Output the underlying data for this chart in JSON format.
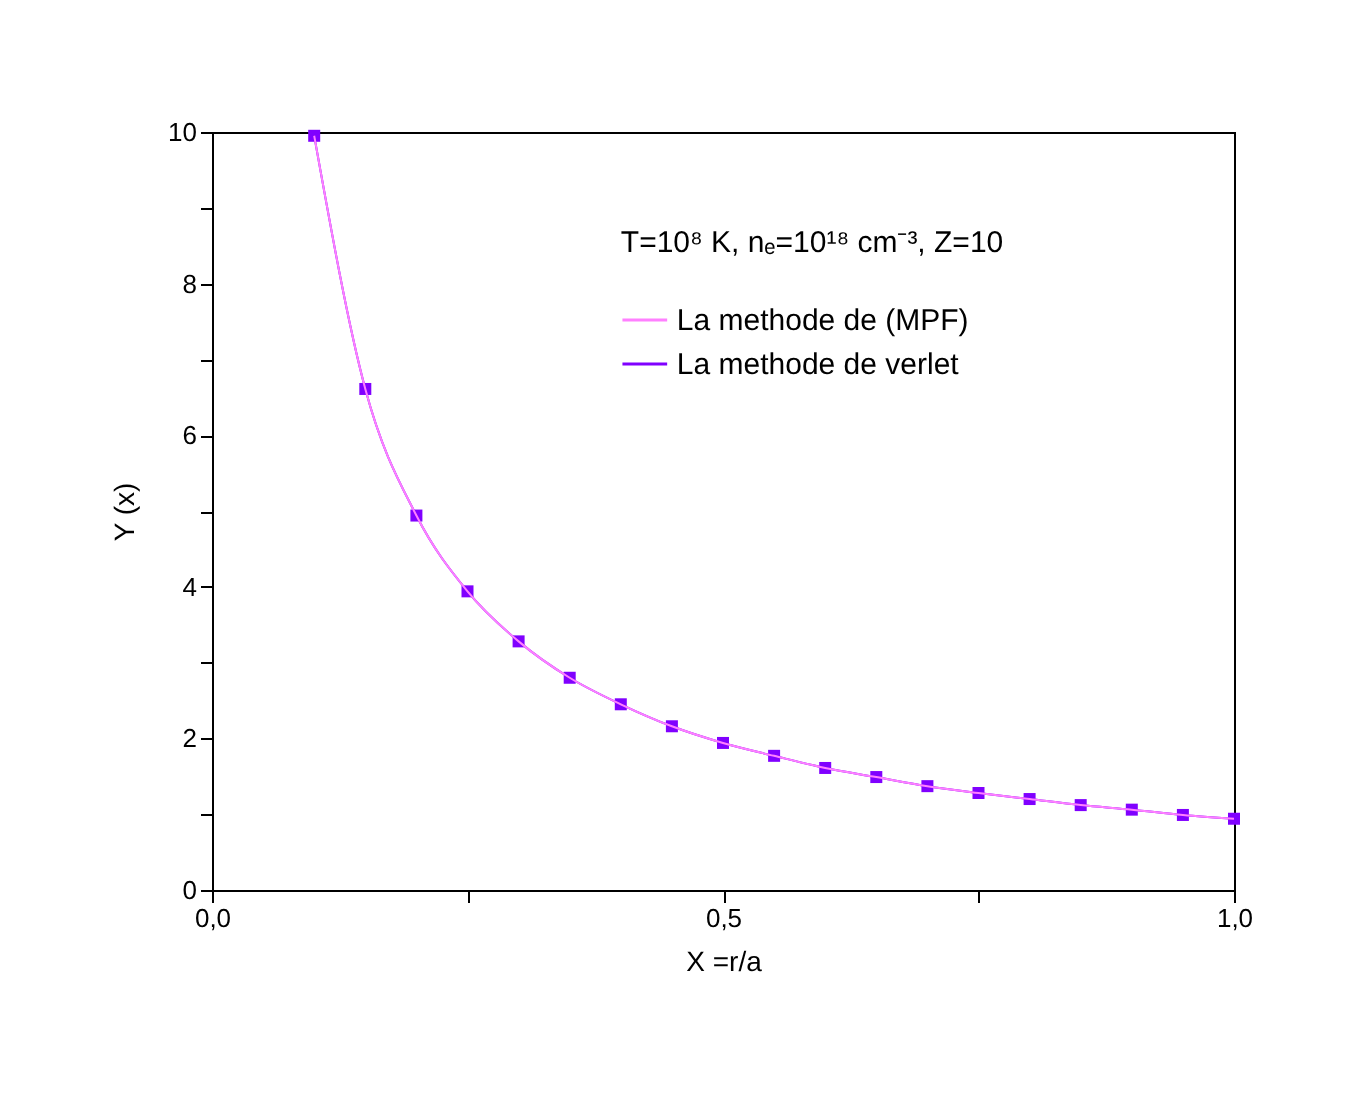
{
  "chart_data": {
    "type": "line",
    "xlabel": "X =r/a",
    "ylabel": "Y (x)",
    "annotations": [
      "T=10⁸ K, nₑ=10¹⁸ cm⁻³, Z=10"
    ],
    "x": [
      0.1,
      0.15,
      0.2,
      0.25,
      0.3,
      0.35,
      0.4,
      0.45,
      0.5,
      0.55,
      0.6,
      0.65,
      0.7,
      0.75,
      0.8,
      0.85,
      0.9,
      0.95,
      1.0
    ],
    "series": [
      {
        "name": "La methode de (MPF)",
        "color": "#ff80ff",
        "marker": "none",
        "values": [
          9.95,
          6.61,
          4.94,
          3.94,
          3.28,
          2.8,
          2.45,
          2.16,
          1.94,
          1.77,
          1.61,
          1.49,
          1.37,
          1.28,
          1.2,
          1.12,
          1.06,
          0.99,
          0.94
        ]
      },
      {
        "name": "La methode de verlet",
        "color": "#8000ff",
        "marker": "square",
        "values": [
          9.95,
          6.61,
          4.94,
          3.94,
          3.28,
          2.8,
          2.45,
          2.16,
          1.94,
          1.77,
          1.61,
          1.49,
          1.37,
          1.28,
          1.2,
          1.12,
          1.06,
          0.99,
          0.94
        ]
      }
    ],
    "xlim": [
      0,
      1.0
    ],
    "ylim": [
      0,
      10
    ],
    "xticks": [
      {
        "value": 0,
        "label": "0,0"
      },
      {
        "value": 0.25,
        "label": null
      },
      {
        "value": 0.5,
        "label": "0,5"
      },
      {
        "value": 0.75,
        "label": null
      },
      {
        "value": 1.0,
        "label": "1,0"
      }
    ],
    "yticks": [
      0,
      {
        "value": 1,
        "label": null
      },
      2,
      {
        "value": 3,
        "label": null
      },
      4,
      {
        "value": 5,
        "label": null
      },
      6,
      {
        "value": 7,
        "label": null
      },
      8,
      {
        "value": 9,
        "label": null
      },
      10
    ],
    "grid": false,
    "legend": "top right",
    "line_style": "solid"
  }
}
